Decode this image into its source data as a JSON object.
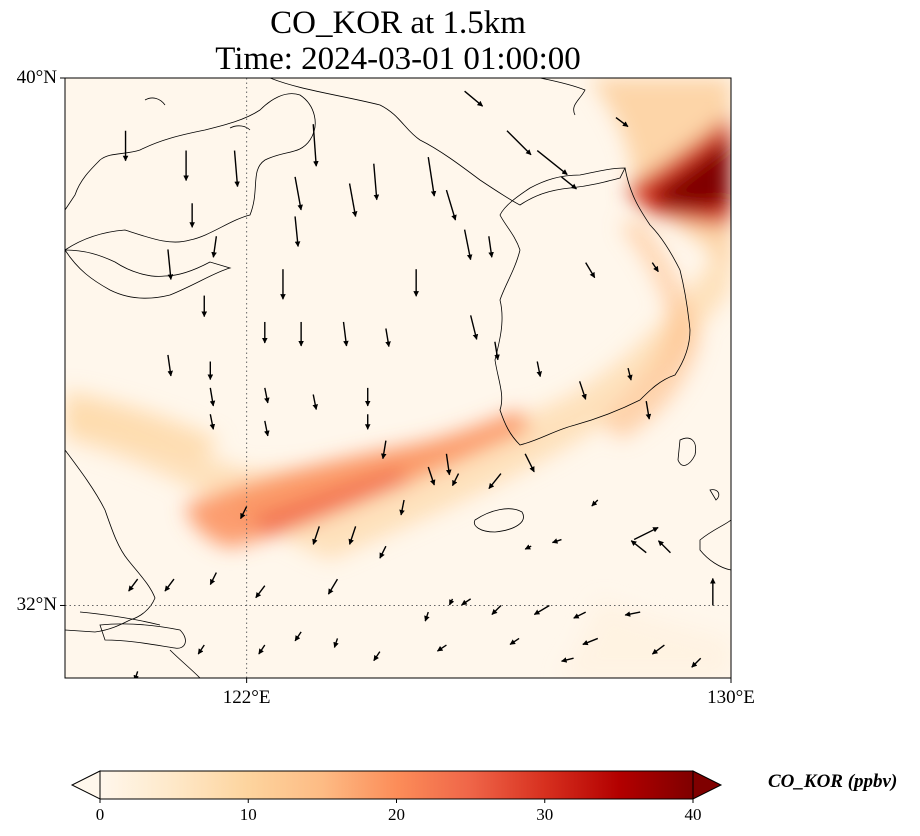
{
  "title": {
    "line1": "CO_KOR at 1.5km",
    "line2": "Time: 2024-03-01 01:00:00"
  },
  "map": {
    "lon_range": [
      119,
      130
    ],
    "lat_range": [
      30.9,
      40
    ],
    "lat_ticks": [
      {
        "value": 40,
        "label": "40°N"
      },
      {
        "value": 32,
        "label": "32°N"
      }
    ],
    "lon_ticks": [
      {
        "value": 122,
        "label": "122°E"
      },
      {
        "value": 130,
        "label": "130°E"
      }
    ],
    "gridlines": {
      "lons": [
        122
      ],
      "lats": [
        32
      ],
      "style": "dotted"
    }
  },
  "colorbar": {
    "title": "CO_KOR (ppbv)",
    "min": 0,
    "max": 40,
    "extend": "both",
    "ticks": [
      {
        "value": 0,
        "label": "0"
      },
      {
        "value": 10,
        "label": "10"
      },
      {
        "value": 20,
        "label": "20"
      },
      {
        "value": 30,
        "label": "30"
      },
      {
        "value": 40,
        "label": "40"
      }
    ],
    "colormap": [
      "#fff7ec",
      "#fee8c8",
      "#fdd49e",
      "#fdbb84",
      "#fc8d59",
      "#ef6548",
      "#d7301f",
      "#b30000",
      "#7f0000"
    ]
  },
  "chart_data": {
    "type": "heatmap",
    "variable": "CO_KOR",
    "units": "ppbv",
    "high_concentration_features": [
      {
        "feature": "plume_band_SW_to_NE",
        "from_lonlat": [
          121.8,
          32.9
        ],
        "to_lonlat": [
          127.3,
          34.4
        ],
        "peak_ppbv": 20
      },
      {
        "feature": "hotspot_northeast",
        "lonlat": [
          129.4,
          38.2
        ],
        "peak_ppbv": 38
      },
      {
        "feature": "coastal_band_east_korea",
        "from_lonlat": [
          128.2,
          38.6
        ],
        "to_lonlat": [
          127.0,
          35.0
        ],
        "peak_ppbv": 10
      }
    ],
    "wind_vectors": [
      {
        "lon": 120.0,
        "lat": 39.2,
        "u": 0,
        "v": -1.0
      },
      {
        "lon": 121.0,
        "lat": 38.9,
        "u": 0,
        "v": -1.0
      },
      {
        "lon": 121.8,
        "lat": 38.9,
        "u": 0.1,
        "v": -1.2
      },
      {
        "lon": 123.1,
        "lat": 39.3,
        "u": 0.1,
        "v": -1.4
      },
      {
        "lon": 124.1,
        "lat": 38.7,
        "u": 0.1,
        "v": -1.2
      },
      {
        "lon": 125.0,
        "lat": 38.8,
        "u": 0.2,
        "v": -1.3
      },
      {
        "lon": 125.3,
        "lat": 38.3,
        "u": 0.3,
        "v": -1.0
      },
      {
        "lon": 122.8,
        "lat": 38.5,
        "u": 0.2,
        "v": -1.1
      },
      {
        "lon": 123.7,
        "lat": 38.4,
        "u": 0.2,
        "v": -1.1
      },
      {
        "lon": 121.1,
        "lat": 38.1,
        "u": 0.0,
        "v": -0.8
      },
      {
        "lon": 122.8,
        "lat": 37.9,
        "u": 0.1,
        "v": -1.0
      },
      {
        "lon": 125.6,
        "lat": 37.7,
        "u": 0.2,
        "v": -1.0
      },
      {
        "lon": 126.0,
        "lat": 37.6,
        "u": 0.1,
        "v": -0.7
      },
      {
        "lon": 126.3,
        "lat": 39.2,
        "u": 0.8,
        "v": -0.8
      },
      {
        "lon": 125.6,
        "lat": 39.8,
        "u": 0.6,
        "v": -0.5
      },
      {
        "lon": 126.8,
        "lat": 38.9,
        "u": 1.0,
        "v": -0.8
      },
      {
        "lon": 127.2,
        "lat": 38.5,
        "u": 0.5,
        "v": -0.4
      },
      {
        "lon": 128.1,
        "lat": 39.4,
        "u": 0.4,
        "v": -0.3
      },
      {
        "lon": 120.7,
        "lat": 37.4,
        "u": 0.1,
        "v": -1.0
      },
      {
        "lon": 121.5,
        "lat": 37.6,
        "u": -0.1,
        "v": -0.7
      },
      {
        "lon": 122.6,
        "lat": 37.1,
        "u": 0.0,
        "v": -1.0
      },
      {
        "lon": 124.8,
        "lat": 37.1,
        "u": 0.0,
        "v": -0.9
      },
      {
        "lon": 127.6,
        "lat": 37.2,
        "u": 0.3,
        "v": -0.5
      },
      {
        "lon": 128.7,
        "lat": 37.2,
        "u": 0.2,
        "v": -0.3
      },
      {
        "lon": 121.3,
        "lat": 36.7,
        "u": 0.0,
        "v": -0.7
      },
      {
        "lon": 122.3,
        "lat": 36.3,
        "u": 0.0,
        "v": -0.7
      },
      {
        "lon": 122.9,
        "lat": 36.3,
        "u": 0.0,
        "v": -0.8
      },
      {
        "lon": 123.6,
        "lat": 36.3,
        "u": 0.1,
        "v": -0.8
      },
      {
        "lon": 124.3,
        "lat": 36.2,
        "u": 0.1,
        "v": -0.6
      },
      {
        "lon": 125.7,
        "lat": 36.4,
        "u": 0.2,
        "v": -0.8
      },
      {
        "lon": 126.1,
        "lat": 36.0,
        "u": 0.1,
        "v": -0.6
      },
      {
        "lon": 120.7,
        "lat": 35.8,
        "u": 0.1,
        "v": -0.7
      },
      {
        "lon": 121.4,
        "lat": 35.7,
        "u": 0.0,
        "v": -0.6
      },
      {
        "lon": 121.4,
        "lat": 35.3,
        "u": 0.1,
        "v": -0.6
      },
      {
        "lon": 122.3,
        "lat": 35.3,
        "u": 0.1,
        "v": -0.5
      },
      {
        "lon": 123.1,
        "lat": 35.2,
        "u": 0.1,
        "v": -0.5
      },
      {
        "lon": 124.0,
        "lat": 35.3,
        "u": 0.0,
        "v": -0.6
      },
      {
        "lon": 126.8,
        "lat": 35.7,
        "u": 0.1,
        "v": -0.5
      },
      {
        "lon": 127.5,
        "lat": 35.4,
        "u": 0.2,
        "v": -0.6
      },
      {
        "lon": 128.3,
        "lat": 35.6,
        "u": 0.1,
        "v": -0.4
      },
      {
        "lon": 128.6,
        "lat": 35.1,
        "u": 0.1,
        "v": -0.6
      },
      {
        "lon": 121.4,
        "lat": 34.9,
        "u": 0.1,
        "v": -0.5
      },
      {
        "lon": 122.3,
        "lat": 34.8,
        "u": 0.1,
        "v": -0.5
      },
      {
        "lon": 124.0,
        "lat": 34.9,
        "u": 0.0,
        "v": -0.5
      },
      {
        "lon": 124.3,
        "lat": 34.5,
        "u": -0.1,
        "v": -0.6
      },
      {
        "lon": 125.0,
        "lat": 34.1,
        "u": 0.2,
        "v": -0.6
      },
      {
        "lon": 125.3,
        "lat": 34.3,
        "u": 0.1,
        "v": -0.7
      },
      {
        "lon": 126.6,
        "lat": 34.3,
        "u": 0.3,
        "v": -0.6
      },
      {
        "lon": 122.0,
        "lat": 33.5,
        "u": -0.2,
        "v": -0.4
      },
      {
        "lon": 123.2,
        "lat": 33.2,
        "u": -0.2,
        "v": -0.6
      },
      {
        "lon": 123.8,
        "lat": 33.2,
        "u": -0.2,
        "v": -0.6
      },
      {
        "lon": 124.6,
        "lat": 33.6,
        "u": -0.1,
        "v": -0.5
      },
      {
        "lon": 125.5,
        "lat": 34.0,
        "u": -0.2,
        "v": -0.4
      },
      {
        "lon": 126.2,
        "lat": 34.0,
        "u": -0.4,
        "v": -0.5
      },
      {
        "lon": 126.7,
        "lat": 32.9,
        "u": -0.2,
        "v": -0.1
      },
      {
        "lon": 127.2,
        "lat": 33.0,
        "u": -0.3,
        "v": -0.1
      },
      {
        "lon": 127.8,
        "lat": 33.6,
        "u": -0.2,
        "v": -0.2
      },
      {
        "lon": 128.4,
        "lat": 33.0,
        "u": 0.8,
        "v": 0.4
      },
      {
        "lon": 128.6,
        "lat": 32.8,
        "u": -0.5,
        "v": 0.4
      },
      {
        "lon": 129.0,
        "lat": 32.8,
        "u": -0.4,
        "v": 0.4
      },
      {
        "lon": 120.2,
        "lat": 32.4,
        "u": -0.3,
        "v": -0.4
      },
      {
        "lon": 120.8,
        "lat": 32.4,
        "u": -0.3,
        "v": -0.4
      },
      {
        "lon": 121.5,
        "lat": 32.5,
        "u": -0.2,
        "v": -0.4
      },
      {
        "lon": 122.3,
        "lat": 32.3,
        "u": -0.3,
        "v": -0.4
      },
      {
        "lon": 123.5,
        "lat": 32.4,
        "u": -0.3,
        "v": -0.5
      },
      {
        "lon": 124.3,
        "lat": 32.9,
        "u": -0.2,
        "v": -0.4
      },
      {
        "lon": 125.0,
        "lat": 31.9,
        "u": -0.1,
        "v": -0.3
      },
      {
        "lon": 125.4,
        "lat": 32.1,
        "u": -0.1,
        "v": -0.2
      },
      {
        "lon": 125.7,
        "lat": 32.1,
        "u": -0.3,
        "v": -0.2
      },
      {
        "lon": 126.2,
        "lat": 32.0,
        "u": -0.3,
        "v": -0.3
      },
      {
        "lon": 127.0,
        "lat": 32.0,
        "u": -0.5,
        "v": -0.3
      },
      {
        "lon": 127.6,
        "lat": 31.9,
        "u": -0.4,
        "v": -0.2
      },
      {
        "lon": 128.5,
        "lat": 31.9,
        "u": -0.5,
        "v": -0.1
      },
      {
        "lon": 129.7,
        "lat": 32.0,
        "u": 0.0,
        "v": 0.9
      },
      {
        "lon": 121.3,
        "lat": 31.4,
        "u": -0.2,
        "v": -0.3
      },
      {
        "lon": 122.3,
        "lat": 31.4,
        "u": -0.2,
        "v": -0.3
      },
      {
        "lon": 122.9,
        "lat": 31.6,
        "u": -0.2,
        "v": -0.3
      },
      {
        "lon": 123.5,
        "lat": 31.5,
        "u": -0.1,
        "v": -0.3
      },
      {
        "lon": 124.2,
        "lat": 31.3,
        "u": -0.2,
        "v": -0.3
      },
      {
        "lon": 125.3,
        "lat": 31.4,
        "u": -0.3,
        "v": -0.2
      },
      {
        "lon": 126.5,
        "lat": 31.5,
        "u": -0.3,
        "v": -0.2
      },
      {
        "lon": 127.4,
        "lat": 31.2,
        "u": -0.4,
        "v": -0.1
      },
      {
        "lon": 127.8,
        "lat": 31.5,
        "u": -0.5,
        "v": -0.2
      },
      {
        "lon": 128.9,
        "lat": 31.4,
        "u": -0.4,
        "v": -0.3
      },
      {
        "lon": 123.4,
        "lat": 30.9,
        "u": 0.0,
        "v": -0.2
      },
      {
        "lon": 120.2,
        "lat": 31.0,
        "u": -0.1,
        "v": -0.3
      },
      {
        "lon": 129.5,
        "lat": 31.2,
        "u": -0.3,
        "v": -0.3
      }
    ]
  }
}
